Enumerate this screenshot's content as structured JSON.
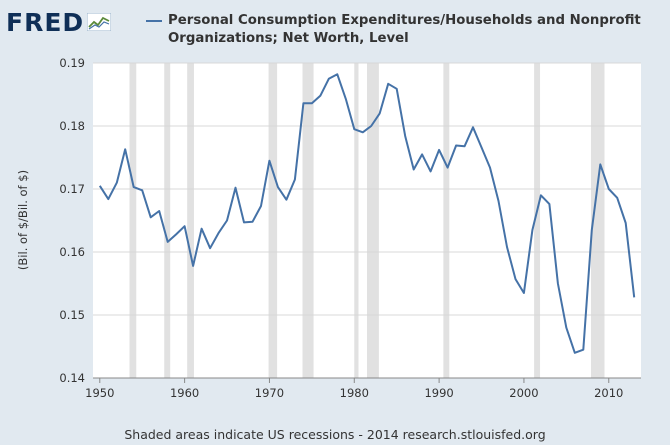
{
  "logo": {
    "text": "FRED"
  },
  "footer": "Shaded areas indicate US recessions - 2014 research.stlouisfed.org",
  "colors": {
    "line": "#4572a7",
    "recession": "#e1e1e1",
    "background": "#e1e9f0"
  },
  "chart_data": {
    "type": "line",
    "title": "",
    "xlabel": "",
    "ylabel": "(Bil. of $/Bil. of $)",
    "xlim": [
      1949.2,
      2013.8
    ],
    "ylim": [
      0.14,
      0.19
    ],
    "x_ticks": [
      1950,
      1960,
      1970,
      1980,
      1990,
      2000,
      2010
    ],
    "y_ticks": [
      "0.14",
      "0.15",
      "0.16",
      "0.17",
      "0.18",
      "0.19"
    ],
    "grid": true,
    "legend": "top",
    "recessions": [
      [
        1953.5,
        1954.3
      ],
      [
        1957.6,
        1958.3
      ],
      [
        1960.3,
        1961.1
      ],
      [
        1969.9,
        1970.9
      ],
      [
        1973.9,
        1975.2
      ],
      [
        1980.0,
        1980.5
      ],
      [
        1981.5,
        1982.9
      ],
      [
        1990.5,
        1991.2
      ],
      [
        2001.2,
        2001.9
      ],
      [
        2007.9,
        2009.5
      ]
    ],
    "series": [
      {
        "name": "Personal Consumption Expenditures/Households and Nonprofit Organizations; Net Worth, Level",
        "x": [
          1950,
          1951,
          1952,
          1953,
          1954,
          1955,
          1956,
          1957,
          1958,
          1959,
          1960,
          1961,
          1962,
          1963,
          1964,
          1965,
          1966,
          1967,
          1968,
          1969,
          1970,
          1971,
          1972,
          1973,
          1974,
          1975,
          1976,
          1977,
          1978,
          1979,
          1980,
          1981,
          1982,
          1983,
          1984,
          1985,
          1986,
          1987,
          1988,
          1989,
          1990,
          1991,
          1992,
          1993,
          1994,
          1995,
          1996,
          1997,
          1998,
          1999,
          2000,
          2001,
          2002,
          2003,
          2004,
          2005,
          2006,
          2007,
          2008,
          2009,
          2010,
          2011,
          2012,
          2013
        ],
        "y": [
          0.1705,
          0.1684,
          0.171,
          0.1763,
          0.1703,
          0.1698,
          0.1655,
          0.1665,
          0.1616,
          0.1628,
          0.1641,
          0.1578,
          0.1637,
          0.1606,
          0.163,
          0.165,
          0.1702,
          0.1647,
          0.1648,
          0.1673,
          0.1745,
          0.1703,
          0.1683,
          0.1715,
          0.1836,
          0.1836,
          0.1848,
          0.1875,
          0.1882,
          0.1843,
          0.1795,
          0.179,
          0.18,
          0.182,
          0.1867,
          0.1859,
          0.1784,
          0.1731,
          0.1755,
          0.1728,
          0.1762,
          0.1734,
          0.1769,
          0.1768,
          0.1798,
          0.1766,
          0.1734,
          0.1681,
          0.1608,
          0.1557,
          0.1535,
          0.1635,
          0.169,
          0.1676,
          0.155,
          0.148,
          0.144,
          0.1445,
          0.1635,
          0.1739,
          0.17,
          0.1686,
          0.1646,
          0.1528
        ]
      }
    ]
  }
}
